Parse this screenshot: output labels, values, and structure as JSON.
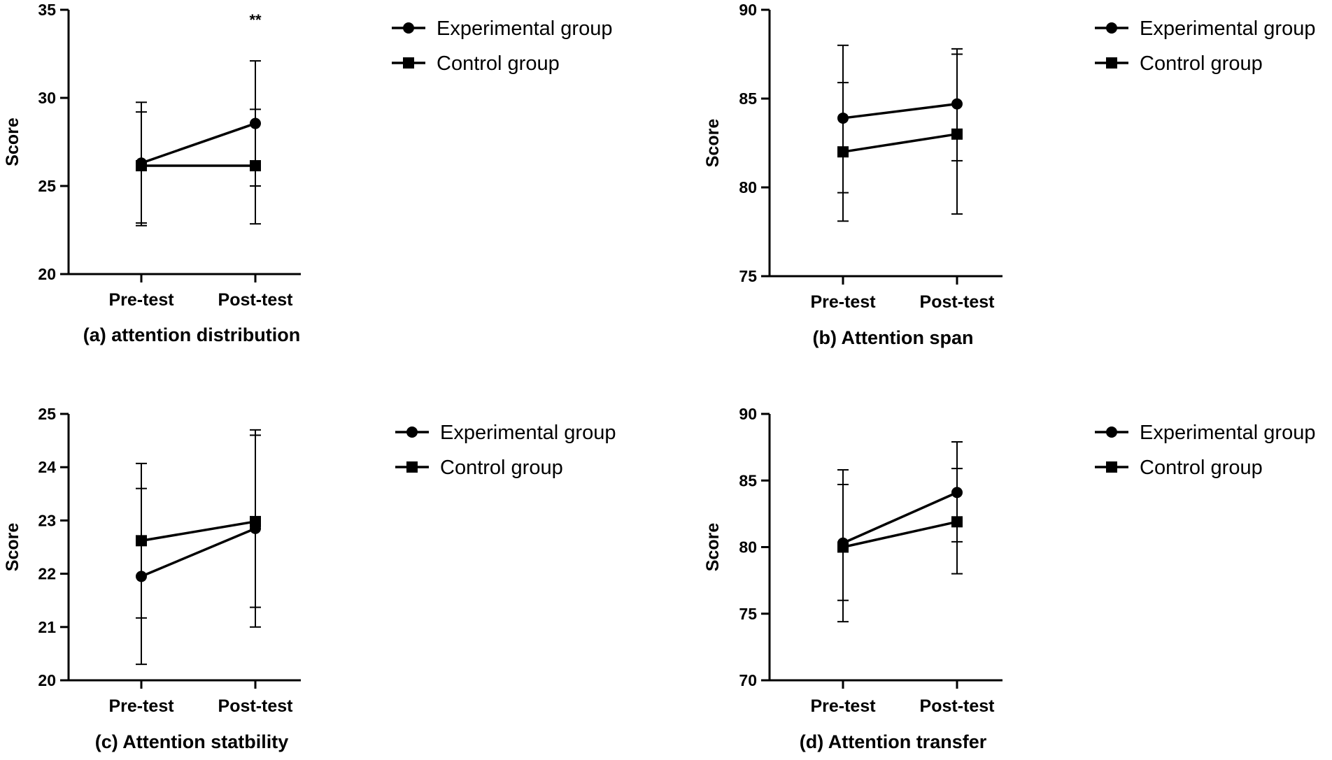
{
  "chart_data": [
    {
      "type": "line",
      "caption": "(a) attention distribution",
      "ylabel": "Score",
      "categories": [
        "Pre-test",
        "Post-test"
      ],
      "ylim": [
        20,
        35
      ],
      "yticks": [
        20,
        25,
        30,
        35
      ],
      "series": [
        {
          "name": "Experimental group",
          "marker": "circle",
          "values": [
            26.3,
            28.55
          ],
          "err_low": [
            22.9,
            25.0
          ],
          "err_high": [
            29.75,
            32.1
          ]
        },
        {
          "name": "Control group",
          "marker": "square",
          "values": [
            26.15,
            26.15
          ],
          "err_low": [
            22.75,
            22.85
          ],
          "err_high": [
            29.2,
            29.35
          ]
        }
      ],
      "annotations": [
        {
          "text": "**",
          "category": "Post-test"
        }
      ],
      "legend": [
        "Experimental group",
        "Control group"
      ]
    },
    {
      "type": "line",
      "caption": "(b) Attention span",
      "ylabel": "Score",
      "categories": [
        "Pre-test",
        "Post-test"
      ],
      "ylim": [
        75,
        90
      ],
      "yticks": [
        75,
        80,
        85,
        90
      ],
      "series": [
        {
          "name": "Experimental group",
          "marker": "circle",
          "values": [
            83.9,
            84.7
          ],
          "err_low": [
            79.7,
            81.5
          ],
          "err_high": [
            88.0,
            87.8
          ]
        },
        {
          "name": "Control group",
          "marker": "square",
          "values": [
            82.0,
            83.0
          ],
          "err_low": [
            78.1,
            78.5
          ],
          "err_high": [
            85.9,
            87.5
          ]
        }
      ],
      "annotations": [],
      "legend": [
        "Experimental group",
        "Control group"
      ]
    },
    {
      "type": "line",
      "caption": "(c) Attention statbility",
      "ylabel": "Score",
      "categories": [
        "Pre-test",
        "Post-test"
      ],
      "ylim": [
        20,
        25
      ],
      "yticks": [
        20,
        21,
        22,
        23,
        24,
        25
      ],
      "series": [
        {
          "name": "Experimental group",
          "marker": "circle",
          "values": [
            21.95,
            22.85
          ],
          "err_low": [
            20.3,
            21.0
          ],
          "err_high": [
            23.6,
            24.7
          ]
        },
        {
          "name": "Control group",
          "marker": "square",
          "values": [
            22.62,
            22.98
          ],
          "err_low": [
            21.17,
            21.37
          ],
          "err_high": [
            24.07,
            24.6
          ]
        }
      ],
      "annotations": [],
      "legend": [
        "Experimental group",
        "Control group"
      ]
    },
    {
      "type": "line",
      "caption": "(d) Attention transfer",
      "ylabel": "Score",
      "categories": [
        "Pre-test",
        "Post-test"
      ],
      "ylim": [
        70,
        90
      ],
      "yticks": [
        70,
        75,
        80,
        85,
        90
      ],
      "series": [
        {
          "name": "Experimental group",
          "marker": "circle",
          "values": [
            80.3,
            84.1
          ],
          "err_low": [
            74.4,
            80.4
          ],
          "err_high": [
            84.7,
            87.9
          ]
        },
        {
          "name": "Control group",
          "marker": "square",
          "values": [
            80.0,
            81.9
          ],
          "err_low": [
            76.0,
            78.0
          ],
          "err_high": [
            85.8,
            85.9
          ]
        }
      ],
      "annotations": [],
      "legend": [
        "Experimental group",
        "Control group"
      ]
    }
  ]
}
